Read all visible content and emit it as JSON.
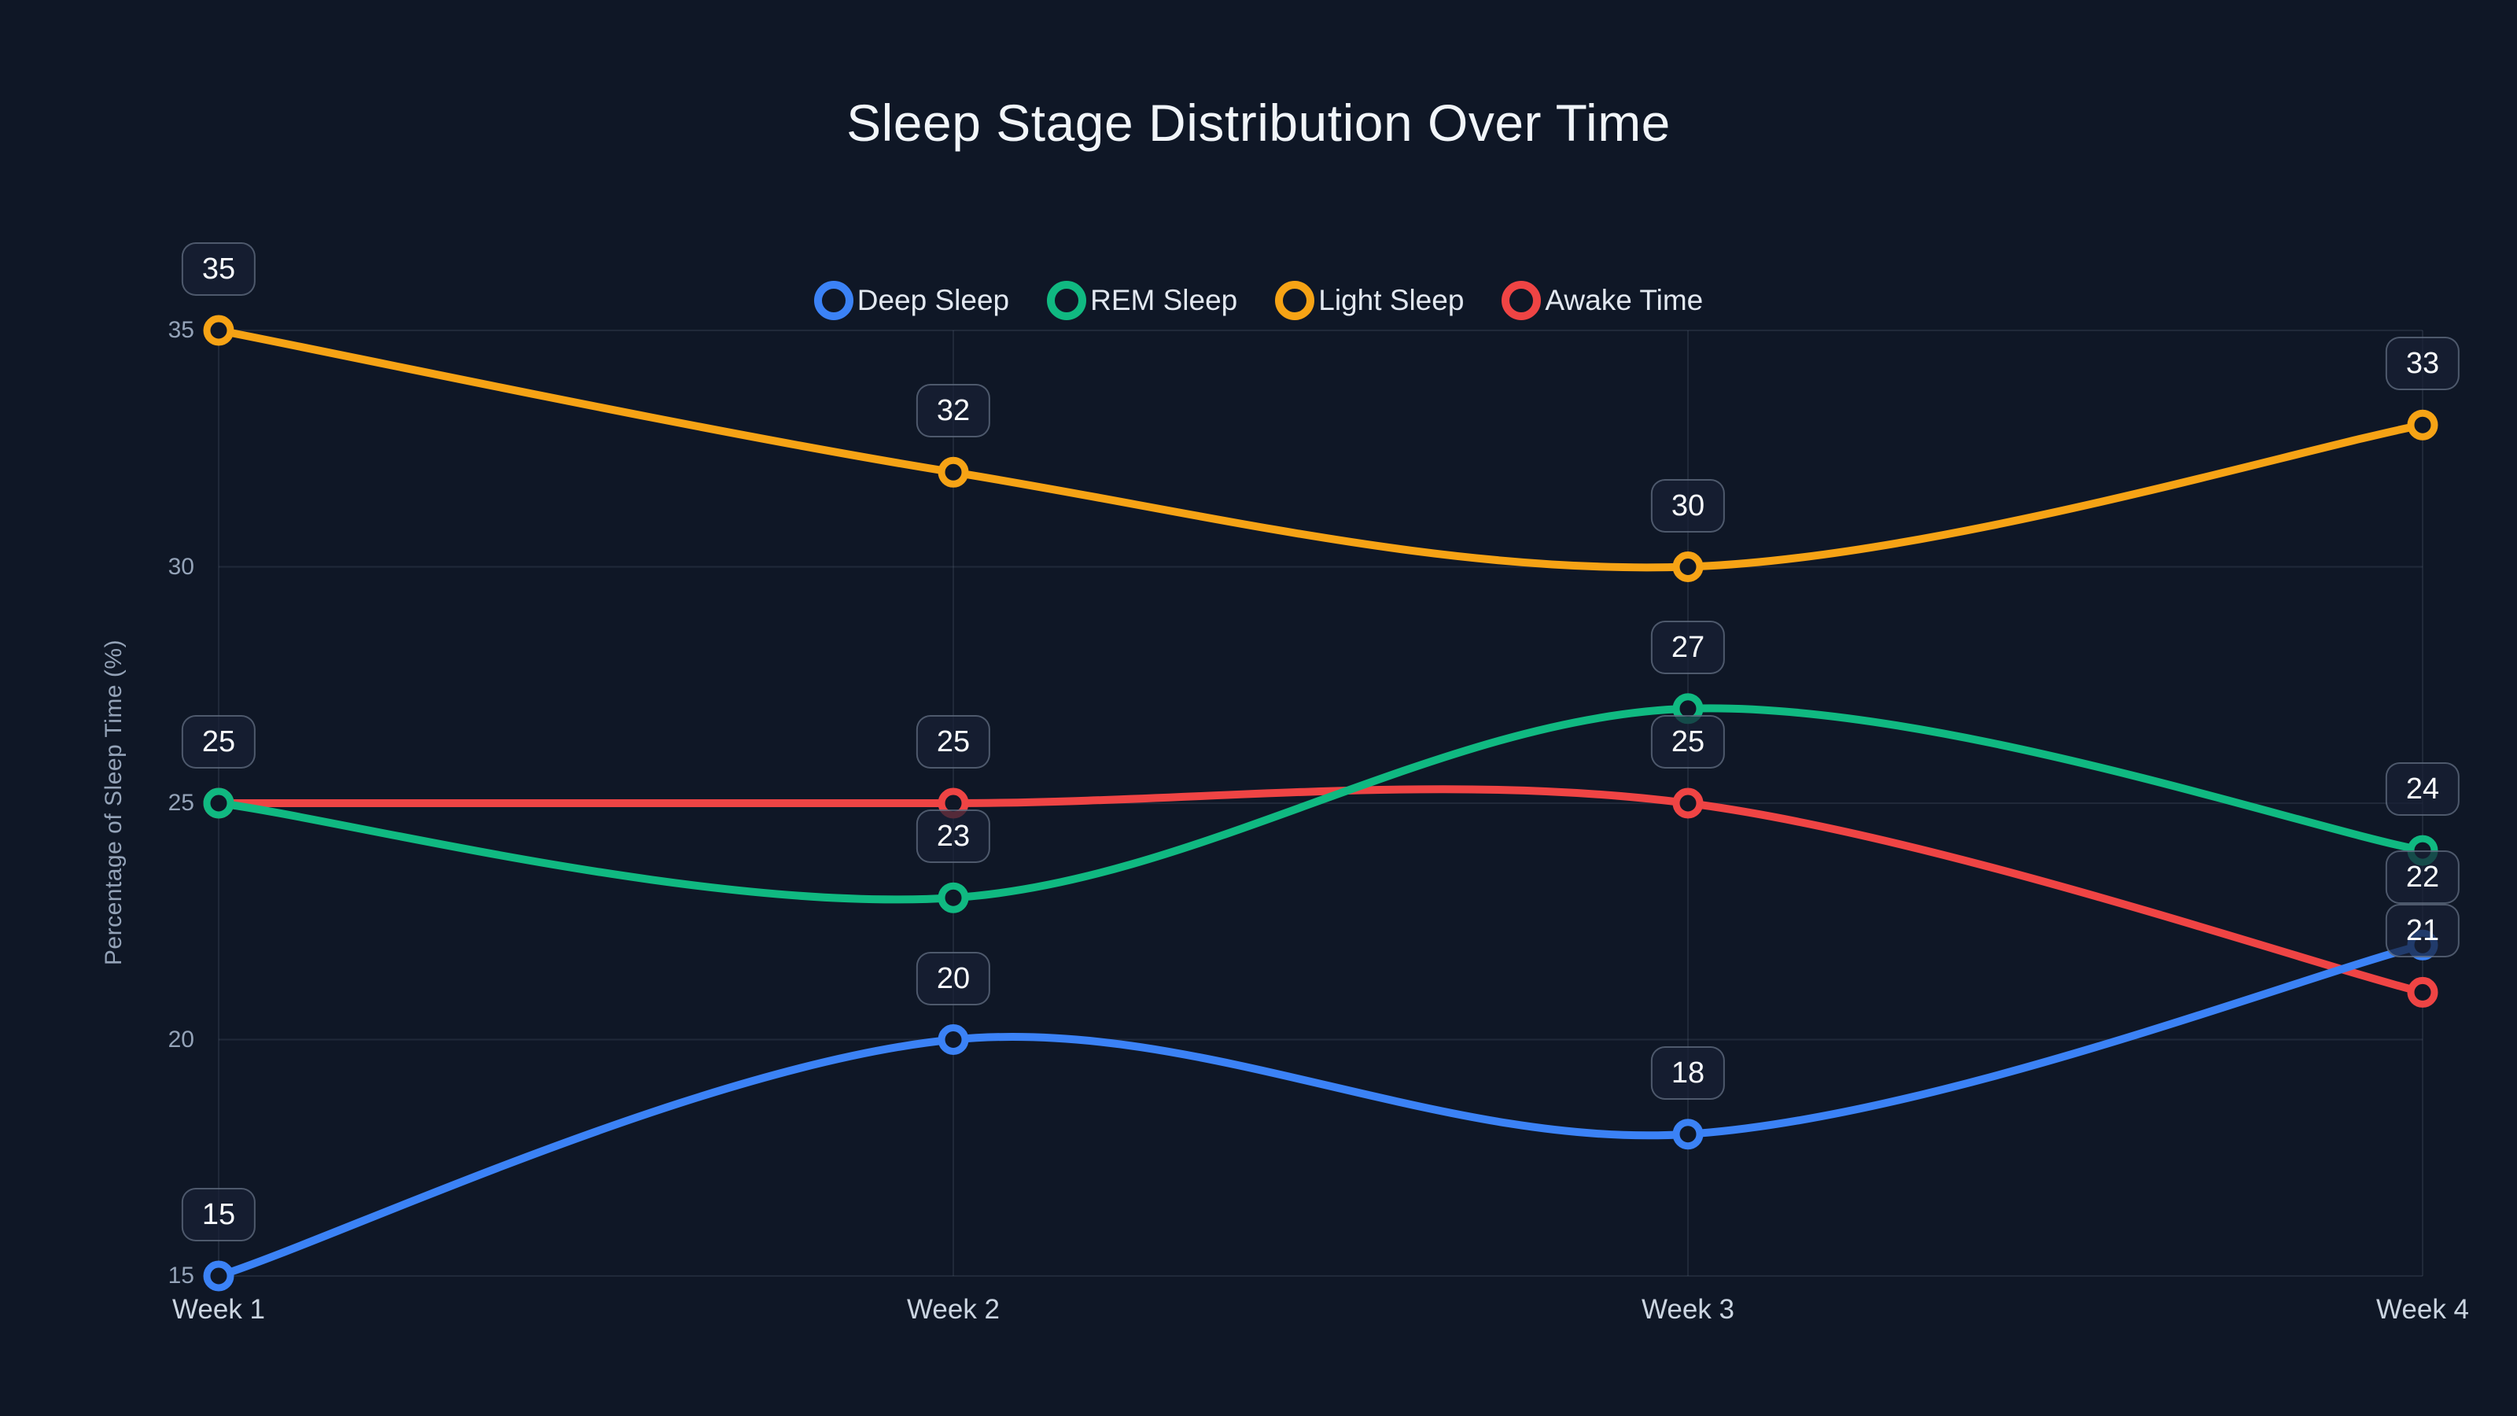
{
  "title": "Sleep Stage Distribution Over Time",
  "colors": {
    "background": "#0f1726",
    "grid": "rgba(148,163,184,0.13)",
    "y_tick_text": "#94a3b8",
    "x_tick_text": "#cbd5e1",
    "legend_text": "#e2e8f0",
    "title_text": "#f1f5f9",
    "point_label_text": "#f8fafc",
    "point_label_fill": "rgba(23,32,52,0.72)",
    "point_label_border": "rgba(148,163,184,0.45)"
  },
  "chart_data": {
    "type": "line",
    "title": "Sleep Stage Distribution Over Time",
    "x": [
      "Week 1",
      "Week 2",
      "Week 3",
      "Week 4"
    ],
    "series": [
      {
        "name": "Deep Sleep",
        "color": "#3b82f6",
        "values": [
          15,
          20,
          18,
          22
        ]
      },
      {
        "name": "REM Sleep",
        "color": "#10b981",
        "values": [
          25,
          23,
          27,
          24
        ]
      },
      {
        "name": "Light Sleep",
        "color": "#f6a315",
        "values": [
          35,
          32,
          30,
          33
        ]
      },
      {
        "name": "Awake Time",
        "color": "#ef4444",
        "values": [
          25,
          25,
          25,
          21
        ]
      }
    ],
    "xlabel": "",
    "ylabel": "Percentage of Sleep Time (%)",
    "yticks": [
      15,
      20,
      25,
      30,
      35
    ],
    "ylim": [
      15,
      35
    ],
    "grid": true,
    "legend_position": "top-center",
    "point_labels": true,
    "curve": "smooth"
  }
}
